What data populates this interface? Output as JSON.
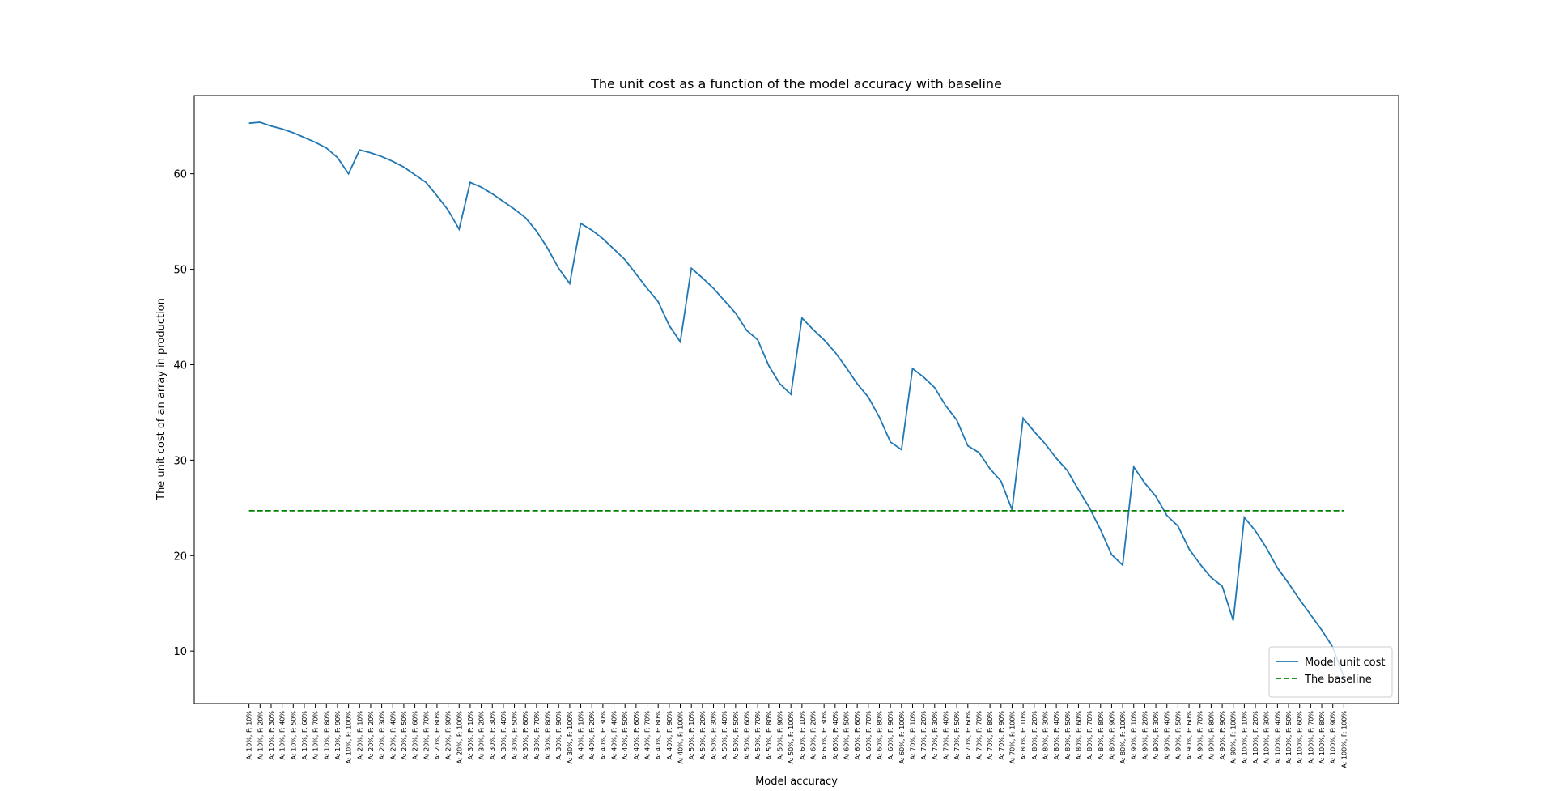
{
  "chart_data": {
    "type": "line",
    "title": "The unit cost as a function of the model accuracy with baseline",
    "x_label": "Model accuracy",
    "y_label": "The unit cost of an array in production",
    "categories": [
      "A: 10%, F: 10%",
      "A: 10%, F: 20%",
      "A: 10%, F: 30%",
      "A: 10%, F: 40%",
      "A: 10%, F: 50%",
      "A: 10%, F: 60%",
      "A: 10%, F: 70%",
      "A: 10%, F: 80%",
      "A: 10%, F: 90%",
      "A: 10%, F: 100%",
      "A: 20%, F: 10%",
      "A: 20%, F: 20%",
      "A: 20%, F: 30%",
      "A: 20%, F: 40%",
      "A: 20%, F: 50%",
      "A: 20%, F: 60%",
      "A: 20%, F: 70%",
      "A: 20%, F: 80%",
      "A: 20%, F: 90%",
      "A: 20%, F: 100%",
      "A: 30%, F: 10%",
      "A: 30%, F: 20%",
      "A: 30%, F: 30%",
      "A: 30%, F: 40%",
      "A: 30%, F: 50%",
      "A: 30%, F: 60%",
      "A: 30%, F: 70%",
      "A: 30%, F: 80%",
      "A: 30%, F: 90%",
      "A: 30%, F: 100%",
      "A: 40%, F: 10%",
      "A: 40%, F: 20%",
      "A: 40%, F: 30%",
      "A: 40%, F: 40%",
      "A: 40%, F: 50%",
      "A: 40%, F: 60%",
      "A: 40%, F: 70%",
      "A: 40%, F: 80%",
      "A: 40%, F: 90%",
      "A: 40%, F: 100%",
      "A: 50%, F: 10%",
      "A: 50%, F: 20%",
      "A: 50%, F: 30%",
      "A: 50%, F: 40%",
      "A: 50%, F: 50%",
      "A: 50%, F: 60%",
      "A: 50%, F: 70%",
      "A: 50%, F: 80%",
      "A: 50%, F: 90%",
      "A: 50%, F: 100%",
      "A: 60%, F: 10%",
      "A: 60%, F: 20%",
      "A: 60%, F: 30%",
      "A: 60%, F: 40%",
      "A: 60%, F: 50%",
      "A: 60%, F: 60%",
      "A: 60%, F: 70%",
      "A: 60%, F: 80%",
      "A: 60%, F: 90%",
      "A: 60%, F: 100%",
      "A: 70%, F: 10%",
      "A: 70%, F: 20%",
      "A: 70%, F: 30%",
      "A: 70%, F: 40%",
      "A: 70%, F: 50%",
      "A: 70%, F: 60%",
      "A: 70%, F: 70%",
      "A: 70%, F: 80%",
      "A: 70%, F: 90%",
      "A: 70%, F: 100%",
      "A: 80%, F: 10%",
      "A: 80%, F: 20%",
      "A: 80%, F: 30%",
      "A: 80%, F: 40%",
      "A: 80%, F: 50%",
      "A: 80%, F: 60%",
      "A: 80%, F: 70%",
      "A: 80%, F: 80%",
      "A: 80%, F: 90%",
      "A: 80%, F: 100%",
      "A: 90%, F: 10%",
      "A: 90%, F: 20%",
      "A: 90%, F: 30%",
      "A: 90%, F: 40%",
      "A: 90%, F: 50%",
      "A: 90%, F: 60%",
      "A: 90%, F: 70%",
      "A: 90%, F: 80%",
      "A: 90%, F: 90%",
      "A: 90%, F: 100%",
      "A: 100%, F: 10%",
      "A: 100%, F: 20%",
      "A: 100%, F: 30%",
      "A: 100%, F: 40%",
      "A: 100%, F: 50%",
      "A: 100%, F: 60%",
      "A: 100%, F: 70%",
      "A: 100%, F: 80%",
      "A: 100%, F: 90%",
      "A: 100%, F: 100%"
    ],
    "series": [
      {
        "name": "Model unit cost",
        "color": "#1f77b4",
        "dash": "solid",
        "values": [
          65.3,
          65.4,
          65.0,
          64.7,
          64.3,
          63.8,
          63.3,
          62.7,
          61.7,
          60.0,
          62.5,
          62.2,
          61.8,
          61.3,
          60.7,
          59.9,
          59.1,
          57.7,
          56.2,
          54.2,
          59.1,
          58.6,
          57.9,
          57.1,
          56.3,
          55.4,
          54.0,
          52.2,
          50.1,
          48.5,
          54.8,
          54.1,
          53.2,
          52.1,
          51.0,
          49.5,
          48.0,
          46.6,
          44.1,
          42.4,
          50.1,
          49.1,
          48.0,
          46.7,
          45.4,
          43.6,
          42.6,
          39.9,
          38.0,
          36.9,
          44.9,
          43.7,
          42.6,
          41.3,
          39.7,
          38.0,
          36.6,
          34.5,
          31.9,
          31.1,
          39.6,
          38.7,
          37.6,
          35.7,
          34.2,
          31.5,
          30.8,
          29.1,
          27.8,
          24.8,
          34.4,
          33.0,
          31.7,
          30.2,
          28.9,
          26.9,
          25.0,
          22.7,
          20.1,
          19.0,
          29.3,
          27.6,
          26.2,
          24.2,
          23.1,
          20.7,
          19.1,
          17.7,
          16.8,
          13.2,
          24.0,
          22.6,
          20.8,
          18.7,
          17.1,
          15.4,
          13.8,
          12.2,
          10.4,
          7.3
        ]
      },
      {
        "name": "The baseline",
        "color": "#008000",
        "dash": "dashed",
        "values": [
          24.7,
          24.7,
          24.7,
          24.7,
          24.7,
          24.7,
          24.7,
          24.7,
          24.7,
          24.7,
          24.7,
          24.7,
          24.7,
          24.7,
          24.7,
          24.7,
          24.7,
          24.7,
          24.7,
          24.7,
          24.7,
          24.7,
          24.7,
          24.7,
          24.7,
          24.7,
          24.7,
          24.7,
          24.7,
          24.7,
          24.7,
          24.7,
          24.7,
          24.7,
          24.7,
          24.7,
          24.7,
          24.7,
          24.7,
          24.7,
          24.7,
          24.7,
          24.7,
          24.7,
          24.7,
          24.7,
          24.7,
          24.7,
          24.7,
          24.7,
          24.7,
          24.7,
          24.7,
          24.7,
          24.7,
          24.7,
          24.7,
          24.7,
          24.7,
          24.7,
          24.7,
          24.7,
          24.7,
          24.7,
          24.7,
          24.7,
          24.7,
          24.7,
          24.7,
          24.7,
          24.7,
          24.7,
          24.7,
          24.7,
          24.7,
          24.7,
          24.7,
          24.7,
          24.7,
          24.7,
          24.7,
          24.7,
          24.7,
          24.7,
          24.7,
          24.7,
          24.7,
          24.7,
          24.7,
          24.7,
          24.7,
          24.7,
          24.7,
          24.7,
          24.7,
          24.7,
          24.7,
          24.7,
          24.7,
          24.7
        ]
      }
    ],
    "ylim": [
      4.5,
      68.2
    ],
    "yticks": [
      10,
      20,
      30,
      40,
      50,
      60
    ],
    "legend": "lower right",
    "grid": false
  }
}
